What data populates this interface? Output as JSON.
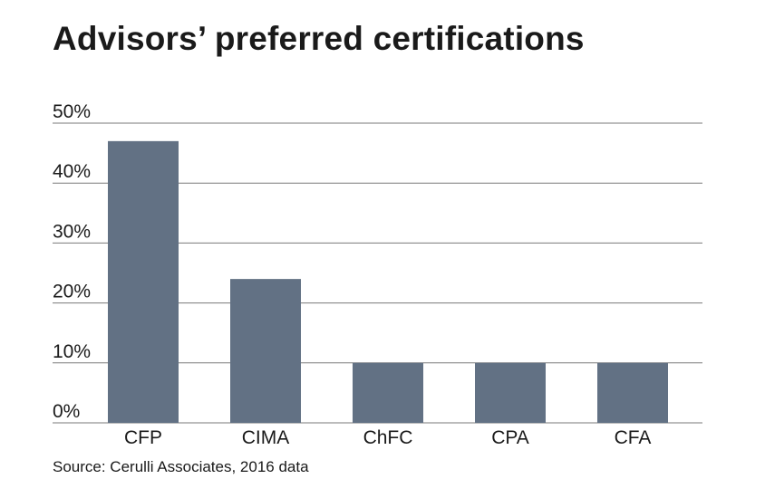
{
  "chart_data": {
    "type": "bar",
    "title": "Advisors’ preferred certifications",
    "source": "Source: Cerulli Associates, 2016 data",
    "xlabel": "",
    "ylabel": "",
    "categories": [
      "CFP",
      "CIMA",
      "ChFC",
      "CPA",
      "CFA"
    ],
    "values": [
      47,
      24,
      10,
      10,
      10
    ],
    "ylim": [
      0,
      50
    ],
    "yticks": [
      0,
      10,
      20,
      30,
      40,
      50
    ],
    "ytick_labels": [
      "0%",
      "10%",
      "20%",
      "30%",
      "40%",
      "50%"
    ],
    "grid": true,
    "legend": "none",
    "bar_color": "#627184",
    "grid_color": "#7a7a7a"
  }
}
